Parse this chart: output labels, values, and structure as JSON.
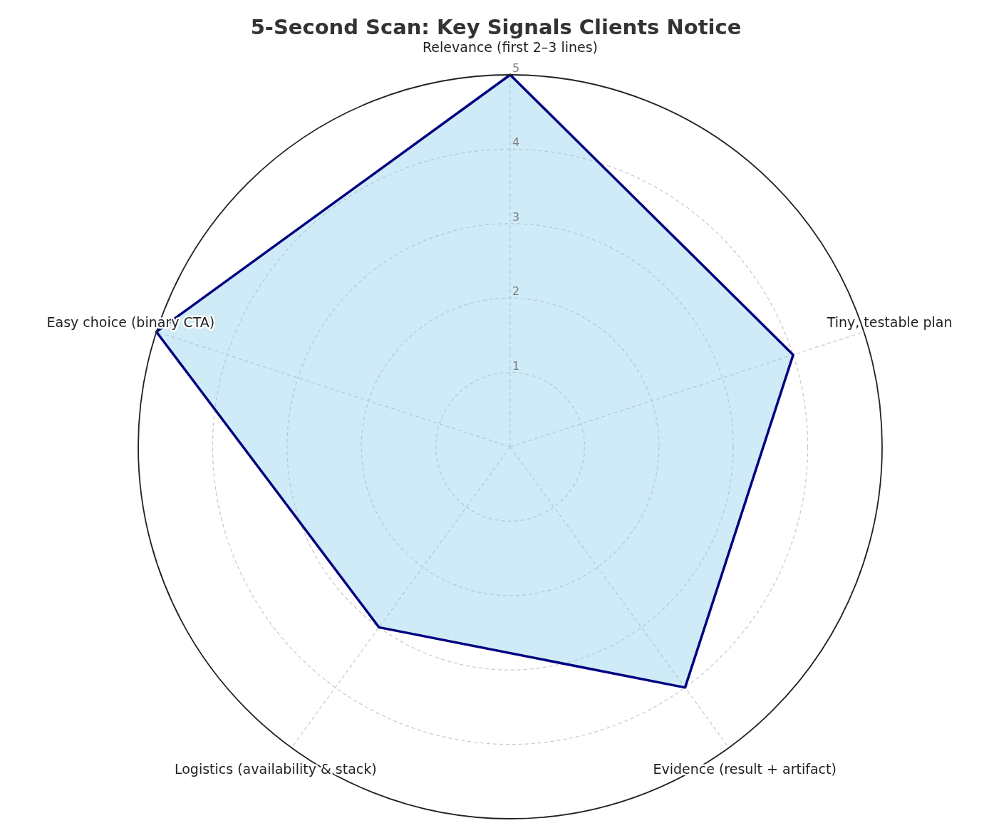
{
  "chart_data": {
    "type": "radar",
    "title": "5-Second Scan: Key Signals Clients Notice",
    "categories": [
      "Relevance (first 2–3 lines)",
      "Tiny, testable plan",
      "Evidence (result + artifact)",
      "Logistics (availability & stack)",
      "Easy choice (binary CTA)"
    ],
    "series": [
      {
        "color": "#000080",
        "values": [
          5,
          4,
          4,
          3,
          5
        ]
      }
    ],
    "ylim": [
      0,
      5
    ],
    "yticks": [
      1,
      2,
      3,
      4,
      5
    ],
    "grid": true,
    "marker": "none",
    "line_style": "solid"
  }
}
